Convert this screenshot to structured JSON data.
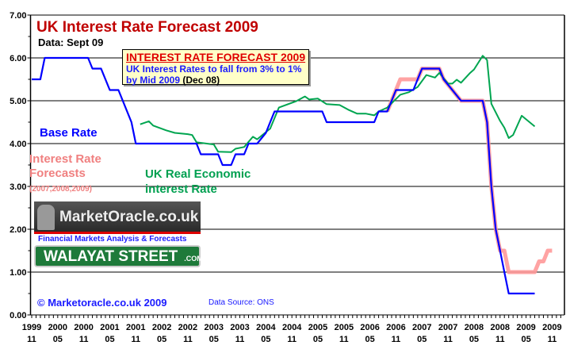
{
  "chart_data": {
    "type": "line",
    "title": "UK Interest Rate Forecast 2009",
    "subtitle": "Data: Sept 09",
    "ylim": [
      0,
      7
    ],
    "yticks": [
      "0.00",
      "1.00",
      "2.00",
      "3.00",
      "4.00",
      "5.00",
      "6.00",
      "7.00"
    ],
    "xlim": [
      "1999-11",
      "2009-11"
    ],
    "xticks": [
      [
        "1999",
        "11"
      ],
      [
        "2000",
        "05"
      ],
      [
        "2000",
        "11"
      ],
      [
        "2001",
        "05"
      ],
      [
        "2001",
        "11"
      ],
      [
        "2002",
        "05"
      ],
      [
        "2002",
        "11"
      ],
      [
        "2003",
        "05"
      ],
      [
        "2003",
        "11"
      ],
      [
        "2004",
        "05"
      ],
      [
        "2004",
        "11"
      ],
      [
        "2005",
        "05"
      ],
      [
        "2005",
        "11"
      ],
      [
        "2006",
        "05"
      ],
      [
        "2006",
        "11"
      ],
      [
        "2007",
        "05"
      ],
      [
        "2007",
        "11"
      ],
      [
        "2008",
        "05"
      ],
      [
        "2008",
        "11"
      ],
      [
        "2009",
        "05"
      ],
      [
        "2009",
        "11"
      ]
    ],
    "grid": true,
    "series": [
      {
        "name": "Interest Rate Forecasts",
        "label_note": "(2007,2008,2009)",
        "color": "#ff9999",
        "points": [
          [
            "2006-09",
            4.75
          ],
          [
            "2006-10",
            5.0
          ],
          [
            "2006-12",
            5.5
          ],
          [
            "2007-04",
            5.5
          ],
          [
            "2007-05",
            5.75
          ],
          [
            "2007-09",
            5.75
          ],
          [
            "2007-10",
            5.5
          ],
          [
            "2007-12",
            5.25
          ],
          [
            "2008-02",
            5.0
          ],
          [
            "2008-07",
            5.0
          ],
          [
            "2008-08",
            4.5
          ],
          [
            "2008-09",
            3.0
          ],
          [
            "2008-10",
            2.0
          ],
          [
            "2008-11",
            1.5
          ],
          [
            "2008-12",
            1.5
          ],
          [
            "2009-01",
            1.0
          ],
          [
            "2009-07",
            1.0
          ],
          [
            "2009-08",
            1.25
          ],
          [
            "2009-09",
            1.25
          ],
          [
            "2009-10",
            1.5
          ],
          [
            "2009-11",
            1.5
          ]
        ]
      },
      {
        "name": "UK Real Economic interest Rate",
        "color": "#00a550",
        "points": [
          [
            "2001-12",
            4.45
          ],
          [
            "2002-02",
            4.52
          ],
          [
            "2002-03",
            4.42
          ],
          [
            "2002-06",
            4.31
          ],
          [
            "2002-08",
            4.25
          ],
          [
            "2002-11",
            4.22
          ],
          [
            "2002-12",
            4.2
          ],
          [
            "2003-01",
            4.03
          ],
          [
            "2003-05",
            3.98
          ],
          [
            "2003-06",
            3.81
          ],
          [
            "2003-09",
            3.8
          ],
          [
            "2003-10",
            3.88
          ],
          [
            "2003-12",
            3.92
          ],
          [
            "2004-02",
            4.16
          ],
          [
            "2004-03",
            4.1
          ],
          [
            "2004-06",
            4.35
          ],
          [
            "2004-08",
            4.84
          ],
          [
            "2004-12",
            4.99
          ],
          [
            "2005-02",
            5.1
          ],
          [
            "2005-03",
            5.03
          ],
          [
            "2005-05",
            5.05
          ],
          [
            "2005-07",
            4.92
          ],
          [
            "2005-10",
            4.9
          ],
          [
            "2005-12",
            4.79
          ],
          [
            "2006-02",
            4.7
          ],
          [
            "2006-04",
            4.7
          ],
          [
            "2006-06",
            4.66
          ],
          [
            "2006-07",
            4.75
          ],
          [
            "2006-09",
            4.84
          ],
          [
            "2006-12",
            5.14
          ],
          [
            "2007-02",
            5.2
          ],
          [
            "2007-04",
            5.32
          ],
          [
            "2007-06",
            5.6
          ],
          [
            "2007-08",
            5.54
          ],
          [
            "2007-09",
            5.65
          ],
          [
            "2007-11",
            5.4
          ],
          [
            "2007-12",
            5.4
          ],
          [
            "2008-01",
            5.49
          ],
          [
            "2008-02",
            5.42
          ],
          [
            "2008-04",
            5.64
          ],
          [
            "2008-05",
            5.73
          ],
          [
            "2008-07",
            6.05
          ],
          [
            "2008-08",
            5.95
          ],
          [
            "2008-09",
            4.93
          ],
          [
            "2008-11",
            4.53
          ],
          [
            "2008-12",
            4.37
          ],
          [
            "2009-01",
            4.13
          ],
          [
            "2009-02",
            4.2
          ],
          [
            "2009-04",
            4.65
          ],
          [
            "2009-07",
            4.4
          ]
        ]
      },
      {
        "name": "Base Rate",
        "color": "#0000ff",
        "points": [
          [
            "1999-11",
            5.5
          ],
          [
            "2000-01",
            5.5
          ],
          [
            "2000-02",
            6.0
          ],
          [
            "2000-12",
            6.0
          ],
          [
            "2001-01",
            5.75
          ],
          [
            "2001-03",
            5.75
          ],
          [
            "2001-05",
            5.25
          ],
          [
            "2001-07",
            5.25
          ],
          [
            "2001-10",
            4.5
          ],
          [
            "2001-11",
            4.0
          ],
          [
            "2003-01",
            4.0
          ],
          [
            "2003-02",
            3.75
          ],
          [
            "2003-06",
            3.75
          ],
          [
            "2003-07",
            3.5
          ],
          [
            "2003-09",
            3.5
          ],
          [
            "2003-10",
            3.75
          ],
          [
            "2003-12",
            3.75
          ],
          [
            "2004-01",
            4.0
          ],
          [
            "2004-03",
            4.0
          ],
          [
            "2004-05",
            4.25
          ],
          [
            "2004-06",
            4.5
          ],
          [
            "2004-07",
            4.75
          ],
          [
            "2005-06",
            4.75
          ],
          [
            "2005-07",
            4.5
          ],
          [
            "2006-06",
            4.5
          ],
          [
            "2006-07",
            4.75
          ],
          [
            "2006-09",
            4.75
          ],
          [
            "2006-10",
            5.0
          ],
          [
            "2006-11",
            5.25
          ],
          [
            "2007-03",
            5.25
          ],
          [
            "2007-04",
            5.5
          ],
          [
            "2007-05",
            5.75
          ],
          [
            "2007-09",
            5.75
          ],
          [
            "2007-10",
            5.5
          ],
          [
            "2007-12",
            5.25
          ],
          [
            "2008-02",
            5.0
          ],
          [
            "2008-07",
            5.0
          ],
          [
            "2008-08",
            4.5
          ],
          [
            "2008-09",
            3.0
          ],
          [
            "2008-10",
            2.0
          ],
          [
            "2008-11",
            1.5
          ],
          [
            "2008-12",
            1.0
          ],
          [
            "2009-01",
            0.5
          ],
          [
            "2009-07",
            0.5
          ]
        ]
      }
    ]
  },
  "annotation": {
    "heading": "INTEREST RATE FORECAST 2009",
    "line1": "UK Interest Rates to fall from 3% to 1%",
    "line2": "by Mid 2009",
    "date": "(Dec 08)"
  },
  "labels": {
    "base_rate": "Base Rate",
    "forecast_1": "Interest Rate",
    "forecast_2": "Forecasts",
    "forecast_years": "(2007,2008,2009)",
    "real_1": "UK Real Economic",
    "real_2": "interest Rate"
  },
  "logo": {
    "name": "MarketOracle.co.uk",
    "tagline": "Financial Markets Analysis & Forecasts",
    "street": "WALAYAT STREET",
    "street_suffix": ".COM"
  },
  "footer": {
    "copyright": "© Marketoracle.co.uk 2009",
    "source": "Data Source: ONS"
  }
}
